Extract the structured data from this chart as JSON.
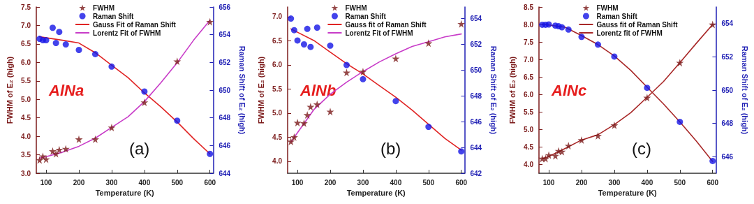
{
  "chart_data": [
    {
      "type": "scatter",
      "xlabel": "Temperature (K)",
      "ylabel": "FWHM of E₂ (high)",
      "y2label": "Raman Shift of E₂ (high)",
      "annotations": [
        "AlNa",
        "(a)"
      ],
      "xlim": [
        70,
        610
      ],
      "xticks": [
        100,
        200,
        300,
        400,
        500,
        600
      ],
      "ylim": [
        3.0,
        7.5
      ],
      "yticks": [
        {
          "value": 3,
          "label": "3.0"
        },
        3.5,
        {
          "value": 4,
          "label": "4.0"
        },
        4.5,
        {
          "value": 5,
          "label": "5.0"
        },
        5.5,
        {
          "value": 6,
          "label": "6.0"
        },
        6.5,
        {
          "value": 7,
          "label": "7.0"
        },
        7.5
      ],
      "y2lim": [
        644,
        656
      ],
      "y2ticks": [
        644,
        646,
        648,
        650,
        652,
        654,
        656
      ],
      "legend": "top",
      "series": [
        {
          "name": "FWHM",
          "marker": "star",
          "color": "#7b1a1a",
          "x": [
            80,
            90,
            100,
            120,
            130,
            140,
            160,
            200,
            250,
            300,
            400,
            500,
            600
          ],
          "values": [
            3.36,
            3.46,
            3.38,
            3.6,
            3.53,
            3.64,
            3.66,
            3.92,
            3.92,
            4.24,
            4.92,
            6.03,
            7.1
          ]
        },
        {
          "name": "Raman Shift",
          "marker": "circle",
          "axis": "y2",
          "color": "#1414e6",
          "x": [
            80,
            90,
            100,
            120,
            130,
            140,
            160,
            200,
            250,
            300,
            400,
            500,
            600
          ],
          "values": [
            653.7,
            653.6,
            653.6,
            654.5,
            653.4,
            654.2,
            653.3,
            652.9,
            652.6,
            651.7,
            649.9,
            647.8,
            645.4
          ]
        },
        {
          "name": "Gauss Fit of Raman Shift",
          "type": "line",
          "marker": "none",
          "line_style": "solid",
          "axis": "y2",
          "color": "#e02424",
          "x": [
            80,
            150,
            200,
            250,
            300,
            350,
            400,
            450,
            500,
            550,
            600
          ],
          "values": [
            653.85,
            653.6,
            653.4,
            652.7,
            651.8,
            650.9,
            649.8,
            648.8,
            647.7,
            646.5,
            645.4
          ]
        },
        {
          "name": "Lorentz Fit of FWHM",
          "type": "line",
          "marker": "none",
          "line_style": "solid",
          "color": "#c83cc8",
          "x": [
            80,
            100,
            150,
            200,
            250,
            300,
            350,
            400,
            450,
            500,
            550,
            600
          ],
          "values": [
            3.41,
            3.45,
            3.57,
            3.73,
            3.95,
            4.24,
            4.53,
            4.94,
            5.45,
            5.99,
            6.6,
            7.14
          ]
        }
      ]
    },
    {
      "type": "scatter",
      "xlabel": "Temperature (K)",
      "ylabel": "FWHM of E₂ (high)",
      "y2label": "Raman Shift of E₂ (high)",
      "annotations": [
        "AlNb",
        "(b)"
      ],
      "xlim": [
        70,
        610
      ],
      "xticks": [
        100,
        200,
        300,
        400,
        500,
        600
      ],
      "ylim": [
        3.75,
        7.2
      ],
      "yticks": [
        {
          "value": 4,
          "label": "4.0"
        },
        4.5,
        {
          "value": 5,
          "label": "5.0"
        },
        5.5,
        {
          "value": 6,
          "label": "6.0"
        },
        6.5,
        {
          "value": 7,
          "label": "7.0"
        }
      ],
      "y2lim": [
        642,
        654.9
      ],
      "y2ticks": [
        642,
        644,
        646,
        648,
        650,
        652,
        654
      ],
      "legend": "top",
      "series": [
        {
          "name": "FWHM",
          "marker": "star",
          "color": "#7b1a1a",
          "x": [
            80,
            90,
            100,
            120,
            130,
            140,
            160,
            200,
            250,
            300,
            400,
            500,
            600
          ],
          "values": [
            4.41,
            4.5,
            4.8,
            4.79,
            4.96,
            5.13,
            5.18,
            5.03,
            5.84,
            5.86,
            6.13,
            6.45,
            6.85
          ]
        },
        {
          "name": "Raman Shift",
          "marker": "circle",
          "axis": "y2",
          "color": "#1414e6",
          "x": [
            80,
            90,
            100,
            120,
            130,
            140,
            160,
            200,
            250,
            300,
            400,
            500,
            600
          ],
          "values": [
            654.0,
            653.1,
            652.3,
            652.0,
            653.2,
            651.8,
            653.3,
            651.9,
            650.4,
            649.3,
            647.6,
            645.6,
            643.7
          ]
        },
        {
          "name": "Gauss fit of Raman Shift",
          "type": "line",
          "marker": "none",
          "line_style": "solid",
          "axis": "y2",
          "color": "#e02424",
          "x": [
            80,
            150,
            200,
            250,
            300,
            350,
            400,
            450,
            500,
            550,
            600
          ],
          "values": [
            653.2,
            652.3,
            651.4,
            650.5,
            649.7,
            648.8,
            647.9,
            646.9,
            645.8,
            644.7,
            643.8
          ]
        },
        {
          "name": "Lorentz Fit of FWHM",
          "type": "line",
          "marker": "none",
          "line_style": "solid",
          "color": "#c83cc8",
          "x": [
            80,
            100,
            150,
            200,
            250,
            300,
            350,
            400,
            450,
            500,
            550,
            600
          ],
          "values": [
            4.4,
            4.59,
            5.07,
            5.39,
            5.64,
            5.86,
            6.06,
            6.23,
            6.38,
            6.48,
            6.58,
            6.64
          ]
        }
      ]
    },
    {
      "type": "scatter",
      "xlabel": "Temperature (K)",
      "ylabel": "FWHM of E₂ (high)",
      "y2label": "Raman Shift of E₂ (high)",
      "annotations": [
        "AlNc",
        "(c)"
      ],
      "xlim": [
        70,
        610
      ],
      "xticks": [
        100,
        200,
        300,
        400,
        500,
        600
      ],
      "ylim": [
        3.75,
        8.5
      ],
      "yticks": [
        {
          "value": 4,
          "label": "4.0"
        },
        4.5,
        {
          "value": 5,
          "label": "5.0"
        },
        5.5,
        {
          "value": 6,
          "label": "6.0"
        },
        6.5,
        {
          "value": 7,
          "label": "7.0"
        },
        7.5,
        {
          "value": 8,
          "label": "8.0"
        },
        8.5
      ],
      "y2lim": [
        645,
        655
      ],
      "y2ticks": [
        646,
        648,
        650,
        652,
        654
      ],
      "legend": "top",
      "series": [
        {
          "name": "FWHM",
          "marker": "star",
          "color": "#7b1a1a",
          "x": [
            80,
            90,
            100,
            120,
            130,
            140,
            160,
            200,
            250,
            300,
            400,
            500,
            600
          ],
          "values": [
            4.17,
            4.17,
            4.27,
            4.25,
            4.39,
            4.37,
            4.54,
            4.7,
            4.82,
            5.12,
            5.91,
            6.91,
            8.0
          ]
        },
        {
          "name": "Raman Shift",
          "marker": "circle",
          "axis": "y2",
          "color": "#1414e6",
          "x": [
            80,
            90,
            100,
            120,
            130,
            140,
            160,
            200,
            250,
            300,
            400,
            500,
            600
          ],
          "values": [
            653.93,
            653.93,
            653.95,
            653.88,
            653.84,
            653.78,
            653.64,
            653.2,
            652.74,
            652.02,
            650.14,
            648.09,
            645.74
          ]
        },
        {
          "name": "Gauss fit of Raman Shift",
          "type": "line",
          "marker": "none",
          "line_style": "solid",
          "axis": "y2",
          "color": "#a82828",
          "x": [
            80,
            150,
            200,
            250,
            300,
            350,
            400,
            450,
            500,
            550,
            600
          ],
          "values": [
            653.97,
            653.78,
            653.28,
            652.74,
            652.05,
            651.19,
            650.18,
            649.17,
            648.09,
            646.94,
            645.71
          ]
        },
        {
          "name": "Lorentz fit of FWHM",
          "type": "line",
          "marker": "none",
          "line_style": "solid",
          "color": "#a82828",
          "x": [
            80,
            100,
            150,
            200,
            250,
            300,
            350,
            400,
            450,
            500,
            550,
            600
          ],
          "values": [
            4.17,
            4.23,
            4.46,
            4.7,
            4.85,
            5.14,
            5.48,
            5.92,
            6.37,
            6.91,
            7.46,
            8.0
          ]
        }
      ]
    }
  ]
}
